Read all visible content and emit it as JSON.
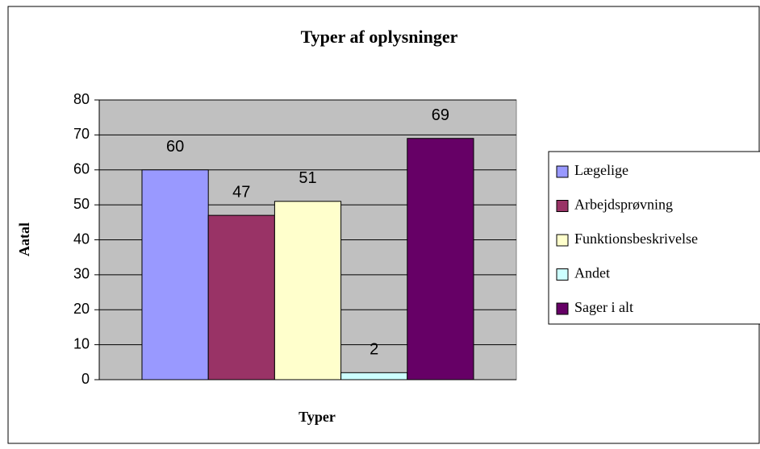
{
  "chart_data": {
    "type": "bar",
    "title": "Typer af oplysninger",
    "x_label": "Typer",
    "y_label": "Aatal",
    "categories": [
      null
    ],
    "series": [
      {
        "name": "Lægelige",
        "color": "#9999ff",
        "values": [
          60
        ]
      },
      {
        "name": "Arbejdsprøvning",
        "color": "#993366",
        "values": [
          47
        ]
      },
      {
        "name": "Funktionsbeskrivelse",
        "color": "#ffffcc",
        "values": [
          51
        ]
      },
      {
        "name": "Andet",
        "color": "#ccffff",
        "values": [
          2
        ]
      },
      {
        "name": "Sager i alt",
        "color": "#660066",
        "values": [
          69
        ]
      }
    ],
    "ylim": [
      0,
      80
    ],
    "yticks": [
      0,
      10,
      20,
      30,
      40,
      50,
      60,
      70,
      80
    ],
    "grid": true,
    "legend": "right",
    "plot_background": "#c0c0c0"
  }
}
